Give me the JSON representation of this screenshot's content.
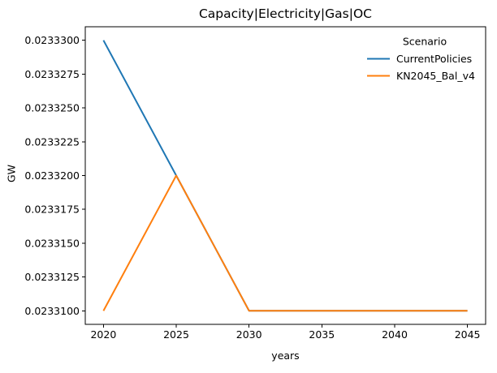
{
  "chart_data": {
    "type": "line",
    "title": "Capacity|Electricity|Gas|OC",
    "xlabel": "years",
    "ylabel": "GW",
    "x": [
      2020,
      2025,
      2030,
      2035,
      2040,
      2045
    ],
    "series": [
      {
        "name": "CurrentPolicies",
        "color": "#1f77b4",
        "values": [
          0.02333,
          0.02332,
          0.02331,
          0.02331,
          0.02331,
          0.02331
        ]
      },
      {
        "name": "KN2045_Bal_v4",
        "color": "#ff7f0e",
        "values": [
          0.02331,
          0.02332,
          0.02331,
          0.02331,
          0.02331,
          0.02331
        ]
      }
    ],
    "xticks": [
      "2020",
      "2025",
      "2030",
      "2035",
      "2040",
      "2045"
    ],
    "yticks": [
      "0.0233300",
      "0.0233275",
      "0.0233250",
      "0.0233225",
      "0.0233200",
      "0.0233175",
      "0.0233150",
      "0.0233125",
      "0.0233100"
    ],
    "xlim": [
      2018.75,
      2046.25
    ],
    "ylim": [
      0.023309,
      0.023331
    ],
    "grid": false,
    "legend": {
      "title": "Scenario",
      "position": "upper right",
      "frame": false
    }
  }
}
